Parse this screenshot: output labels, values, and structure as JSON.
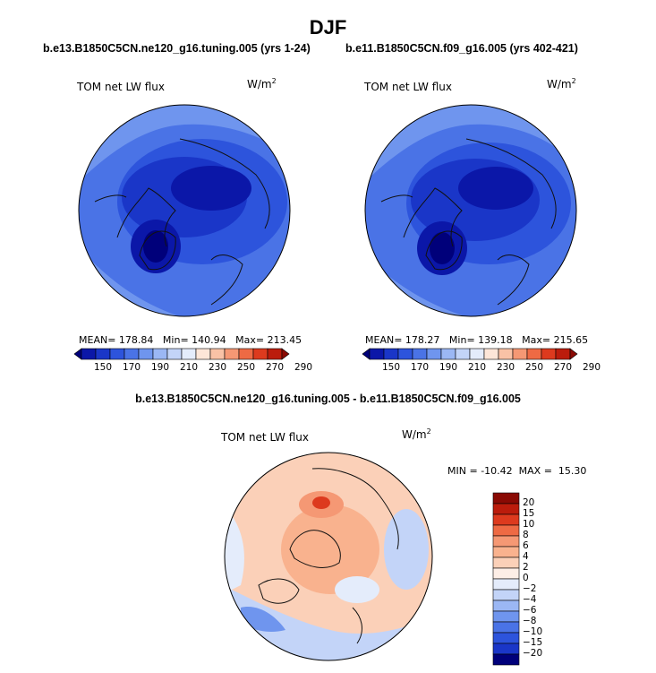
{
  "chart_data": [
    {
      "type": "heatmap",
      "projection": "north-polar-stereographic",
      "title": "b.e13.B1850C5CN.ne120_g16.tuning.005 (yrs 1-24)",
      "panel_label": "TOM net LW flux",
      "units": "W/m",
      "units_exp": "2",
      "stats": {
        "mean_label": "MEAN=",
        "mean": "178.84",
        "min_label": "Min=",
        "min": "140.94",
        "max_label": "Max=",
        "max": "213.45"
      },
      "colorbar_levels": [
        "150",
        "170",
        "190",
        "210",
        "230",
        "250",
        "270",
        "290"
      ],
      "colorbar_colors": [
        "#00007a",
        "#0b17a8",
        "#1a36c8",
        "#2d54dc",
        "#4a73e6",
        "#6f95ee",
        "#9bb7f4",
        "#c3d4f8",
        "#e4ecfb",
        "#fde6d8",
        "#f9c2a6",
        "#f59874",
        "#ee6a44",
        "#dd3a1e",
        "#bb1c0c",
        "#8a0a04"
      ]
    },
    {
      "type": "heatmap",
      "projection": "north-polar-stereographic",
      "title": "b.e11.B1850C5CN.f09_g16.005 (yrs 402-421)",
      "panel_label": "TOM net LW flux",
      "units": "W/m",
      "units_exp": "2",
      "stats": {
        "mean_label": "MEAN=",
        "mean": "178.27",
        "min_label": "Min=",
        "min": "139.18",
        "max_label": "Max=",
        "max": "215.65"
      },
      "colorbar_levels": [
        "150",
        "170",
        "190",
        "210",
        "230",
        "250",
        "270",
        "290"
      ],
      "colorbar_colors": [
        "#00007a",
        "#0b17a8",
        "#1a36c8",
        "#2d54dc",
        "#4a73e6",
        "#6f95ee",
        "#9bb7f4",
        "#c3d4f8",
        "#e4ecfb",
        "#fde6d8",
        "#f9c2a6",
        "#f59874",
        "#ee6a44",
        "#dd3a1e",
        "#bb1c0c",
        "#8a0a04"
      ]
    },
    {
      "type": "heatmap",
      "projection": "north-polar-stereographic",
      "title": "b.e13.B1850C5CN.ne120_g16.tuning.005 - b.e11.B1850C5CN.f09_g16.005",
      "panel_label": "TOM net LW flux",
      "units": "W/m",
      "units_exp": "2",
      "stats": {
        "min_label": "MIN =",
        "min": "-10.42",
        "max_label": "MAX =",
        "max": "15.30"
      },
      "colorbar_levels": [
        "20",
        "15",
        "10",
        "8",
        "6",
        "4",
        "2",
        "0",
        "−2",
        "−4",
        "−6",
        "−8",
        "−10",
        "−15",
        "−20"
      ],
      "colorbar_colors": [
        "#8a0a04",
        "#bb1c0c",
        "#dd3a1e",
        "#ee6a44",
        "#f59874",
        "#f9b28e",
        "#fbd0b8",
        "#fdeee6",
        "#e4ecfb",
        "#c3d4f8",
        "#9bb7f4",
        "#6f95ee",
        "#4a73e6",
        "#2d54dc",
        "#1a36c8",
        "#00007a"
      ]
    }
  ],
  "header": {
    "season": "DJF"
  }
}
